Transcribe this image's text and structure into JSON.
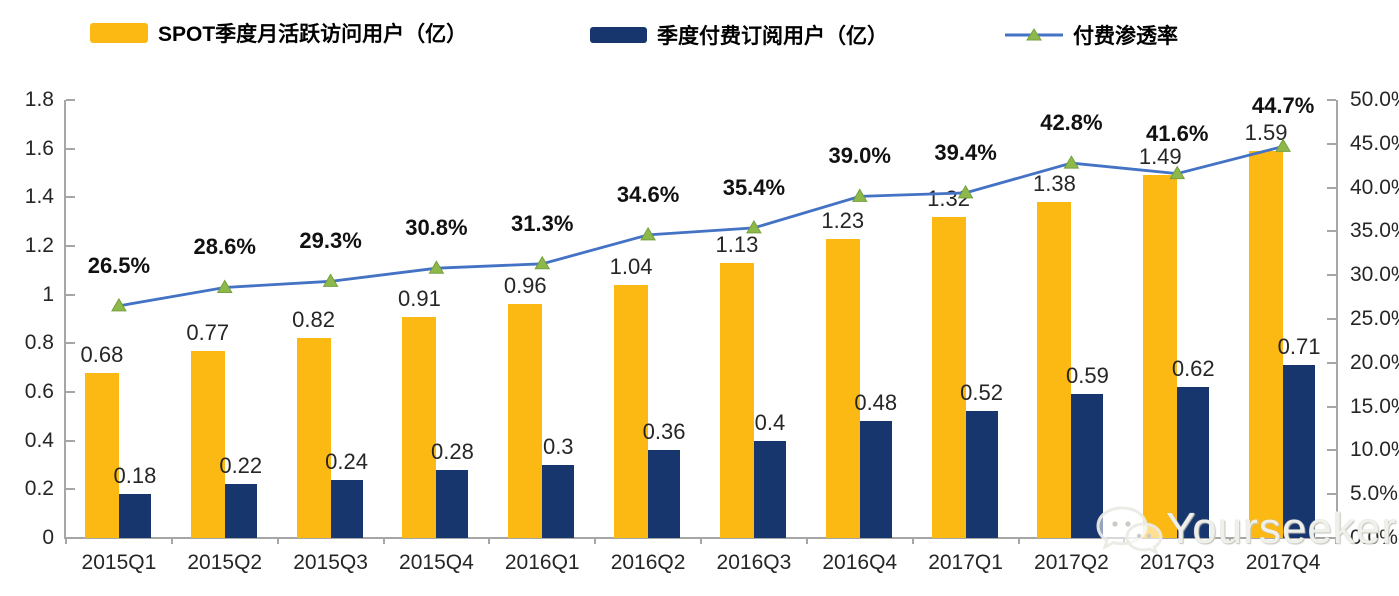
{
  "legend": [
    {
      "label": "SPOT季度月活跃访问用户（亿）",
      "type": "bar",
      "color": "#FCB813"
    },
    {
      "label": "季度付费订阅用户（亿）",
      "type": "bar",
      "color": "#17366D"
    },
    {
      "label": "付费渗透率",
      "type": "line",
      "color": "#4472C4",
      "marker_color": "#8CB94A"
    }
  ],
  "watermark": {
    "text": "Yourseeker",
    "icon": "wechat-icon"
  },
  "chart_data": {
    "type": "combo-bar-line",
    "categories": [
      "2015Q1",
      "2015Q2",
      "2015Q3",
      "2015Q4",
      "2016Q1",
      "2016Q2",
      "2016Q3",
      "2016Q4",
      "2017Q1",
      "2017Q2",
      "2017Q3",
      "2017Q4"
    ],
    "series": [
      {
        "name": "SPOT季度月活跃访问用户（亿）",
        "type": "bar",
        "axis": "left",
        "color": "#FCB813",
        "values": [
          0.68,
          0.77,
          0.82,
          0.91,
          0.96,
          1.04,
          1.13,
          1.23,
          1.32,
          1.38,
          1.49,
          1.59
        ],
        "labels": [
          "0.68",
          "0.77",
          "0.82",
          "0.91",
          "0.96",
          "1.04",
          "1.13",
          "1.23",
          "1.32",
          "1.38",
          "1.49",
          "1.59"
        ]
      },
      {
        "name": "季度付费订阅用户（亿）",
        "type": "bar",
        "axis": "left",
        "color": "#17366D",
        "values": [
          0.18,
          0.22,
          0.24,
          0.28,
          0.3,
          0.36,
          0.4,
          0.48,
          0.52,
          0.59,
          0.62,
          0.71
        ],
        "labels": [
          "0.18",
          "0.22",
          "0.24",
          "0.28",
          "0.3",
          "0.36",
          "0.4",
          "0.48",
          "0.52",
          "0.59",
          "0.62",
          "0.71"
        ]
      },
      {
        "name": "付费渗透率",
        "type": "line",
        "axis": "right",
        "color": "#4472C4",
        "marker": "triangle",
        "marker_color": "#8CB94A",
        "values": [
          26.5,
          28.6,
          29.3,
          30.8,
          31.3,
          34.6,
          35.4,
          39.0,
          39.4,
          42.8,
          41.6,
          44.7
        ],
        "labels": [
          "26.5%",
          "28.6%",
          "29.3%",
          "30.8%",
          "31.3%",
          "34.6%",
          "35.4%",
          "39.0%",
          "39.4%",
          "42.8%",
          "41.6%",
          "44.7%"
        ]
      }
    ],
    "left_axis": {
      "min": 0,
      "max": 1.8,
      "step": 0.2,
      "tick_labels": [
        "1.8",
        "1.6",
        "1.4",
        "1.2",
        "1",
        "0.8",
        "0.6",
        "0.4",
        "0.2",
        "0"
      ]
    },
    "right_axis": {
      "min": 0,
      "max": 50,
      "step": 5,
      "unit": "%",
      "tick_labels": [
        "50.0%",
        "45.0%",
        "40.0%",
        "35.0%",
        "30.0%",
        "25.0%",
        "20.0%",
        "15.0%",
        "10.0%",
        "5.0%",
        "0.0%"
      ]
    },
    "grid": false,
    "legend_position": "top"
  }
}
